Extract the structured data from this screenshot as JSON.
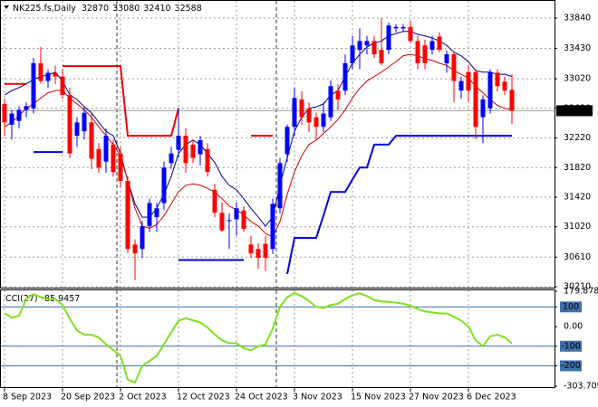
{
  "chart_data": [
    {
      "type": "candlestick",
      "title": "NK225.fs,Daily",
      "categories": [
        "8 Sep 2023",
        null,
        null,
        null,
        null,
        null,
        null,
        null,
        "20 Sep 2023",
        null,
        null,
        null,
        null,
        null,
        null,
        null,
        "2 Oct 2023",
        null,
        null,
        null,
        null,
        null,
        null,
        null,
        "12 Oct 2023",
        null,
        null,
        null,
        null,
        null,
        null,
        null,
        "24 Oct 2023",
        null,
        null,
        null,
        null,
        null,
        null,
        null,
        "3 Nov 2023",
        null,
        null,
        null,
        null,
        null,
        null,
        null,
        "15 Nov 2023",
        null,
        null,
        null,
        null,
        null,
        null,
        null,
        "27 Nov 2023",
        null,
        null,
        null,
        null,
        null,
        null,
        null,
        "6 Dec 2023",
        null,
        null,
        null,
        null,
        null,
        null
      ],
      "open": [
        32680,
        32400,
        32450,
        32600,
        32620,
        33230,
        32990,
        33100,
        33050,
        32800,
        32250,
        32310,
        32430,
        32070,
        31900,
        32130,
        32010,
        31640,
        30780,
        30720,
        31030,
        31150,
        31340,
        31880,
        32060,
        32250,
        32130,
        32000,
        32070,
        31520,
        31210,
        31100,
        31120,
        31240,
        30780,
        30720,
        30790,
        30720,
        31270,
        32000,
        32370,
        32740,
        32620,
        32500,
        32370,
        32500,
        32860,
        32860,
        33230,
        33410,
        33470,
        33530,
        33410,
        33410,
        33700,
        33700,
        33720,
        33530,
        33470,
        33410,
        33590,
        33230,
        33350,
        32860,
        33110,
        33110,
        32500,
        32620,
        33100,
        32980,
        32870
      ],
      "high": [
        32750,
        32600,
        32650,
        32700,
        33300,
        33450,
        33150,
        33200,
        33150,
        32900,
        32500,
        32650,
        32550,
        32150,
        32350,
        32200,
        32100,
        31700,
        30850,
        31100,
        31400,
        31350,
        31900,
        32100,
        32620,
        32350,
        32200,
        32250,
        32150,
        31600,
        31350,
        31200,
        31350,
        31300,
        30900,
        30800,
        30900,
        31400,
        31950,
        32400,
        32900,
        32850,
        32700,
        32560,
        32700,
        33000,
        32950,
        33350,
        33600,
        33700,
        33600,
        33600,
        33840,
        33780,
        33760,
        33760,
        33800,
        33600,
        33550,
        33600,
        33650,
        33400,
        33380,
        33050,
        33200,
        33150,
        32800,
        33150,
        33150,
        33050,
        33080
      ],
      "low": [
        32250,
        32200,
        32350,
        32500,
        32550,
        32950,
        32900,
        32950,
        32750,
        31950,
        32100,
        32200,
        31800,
        31750,
        31750,
        31700,
        31550,
        30660,
        30300,
        30600,
        30950,
        30950,
        31250,
        31800,
        31950,
        31750,
        31880,
        31850,
        31700,
        31150,
        30950,
        30720,
        30900,
        30950,
        30600,
        30450,
        30420,
        30650,
        31200,
        31900,
        32250,
        32400,
        32300,
        32200,
        32300,
        32450,
        32600,
        32800,
        33150,
        33150,
        33350,
        33300,
        33200,
        33350,
        33650,
        33650,
        33500,
        33150,
        33150,
        33350,
        33380,
        33100,
        32700,
        32750,
        32700,
        32200,
        32150,
        32550,
        32850,
        32800,
        32410
      ],
      "close": [
        32430,
        32550,
        32600,
        32650,
        33230,
        32990,
        33100,
        33050,
        32800,
        32010,
        32430,
        32560,
        31940,
        31820,
        32250,
        31760,
        31640,
        30720,
        30660,
        31030,
        31340,
        31270,
        31820,
        32010,
        32250,
        31880,
        31950,
        32190,
        31760,
        31210,
        30970,
        31110,
        31270,
        30990,
        30660,
        30600,
        30600,
        31330,
        31880,
        32370,
        32760,
        32500,
        32430,
        32370,
        32550,
        32920,
        32740,
        33230,
        33470,
        33530,
        33530,
        33350,
        33230,
        33740,
        33720,
        33720,
        33530,
        33230,
        33230,
        33530,
        33410,
        33350,
        32990,
        32990,
        32860,
        32370,
        32740,
        33110,
        32920,
        32860,
        32588
      ],
      "up_color": "#0000ff",
      "down_color": "#ff0000",
      "lines": [
        {
          "color": "#000080",
          "width": 1,
          "values": [
            32800,
            32860,
            32900,
            32950,
            33010,
            33050,
            33070,
            33110,
            32990,
            32800,
            32740,
            32640,
            32560,
            32430,
            32310,
            32250,
            32010,
            31640,
            31330,
            31150,
            31150,
            31270,
            31460,
            31700,
            32010,
            32130,
            32190,
            32130,
            32010,
            31890,
            31700,
            31580,
            31520,
            31400,
            31270,
            31150,
            31030,
            31150,
            31580,
            31950,
            32310,
            32500,
            32620,
            32640,
            32680,
            32800,
            32860,
            33050,
            33230,
            33350,
            33450,
            33500,
            33530,
            33600,
            33630,
            33660,
            33660,
            33620,
            33600,
            33570,
            33530,
            33470,
            33380,
            33330,
            33250,
            33130,
            33110,
            33110,
            33080,
            33080,
            33050
          ]
        },
        {
          "color": "#cc0000",
          "width": 1,
          "values": [
            32370,
            32430,
            32520,
            32620,
            32680,
            32760,
            32830,
            32860,
            32860,
            32760,
            32680,
            32600,
            32500,
            32370,
            32250,
            32130,
            31980,
            31640,
            31270,
            31030,
            31000,
            31050,
            31170,
            31330,
            31490,
            31580,
            31600,
            31580,
            31540,
            31490,
            31400,
            31300,
            31250,
            31180,
            31090,
            31030,
            30930,
            30880,
            31090,
            31460,
            31760,
            31980,
            32130,
            32190,
            32280,
            32370,
            32470,
            32600,
            32760,
            32890,
            32990,
            33050,
            33110,
            33180,
            33250,
            33330,
            33350,
            33330,
            33290,
            33270,
            33230,
            33200,
            33130,
            33080,
            33030,
            32920,
            32830,
            32740,
            32660,
            32620,
            32600
          ]
        },
        {
          "color": "#ee0000",
          "width": 2,
          "values": [
            32950,
            32950,
            32950,
            32950,
            null,
            null,
            null,
            null,
            33190,
            33190,
            33190,
            33190,
            33190,
            33190,
            33190,
            33190,
            33190,
            32250,
            32250,
            32250,
            32250,
            32250,
            32250,
            32250,
            32620,
            null,
            null,
            null,
            null,
            null,
            null,
            null,
            null,
            null,
            32250,
            32250,
            32250,
            32250,
            null,
            null,
            null,
            null,
            null,
            null,
            null,
            null,
            null,
            null,
            null,
            null,
            null,
            null,
            null,
            null,
            null,
            null,
            null,
            null,
            null,
            null,
            null,
            null,
            null,
            null,
            null,
            null,
            null,
            null,
            null,
            null,
            null
          ]
        },
        {
          "color": "#0000dd",
          "width": 2,
          "values": [
            null,
            null,
            null,
            null,
            32030,
            32030,
            32030,
            32030,
            32030,
            null,
            null,
            null,
            null,
            null,
            null,
            null,
            null,
            null,
            null,
            null,
            null,
            null,
            null,
            null,
            30570,
            30570,
            30570,
            30570,
            30570,
            30570,
            30570,
            30570,
            30570,
            30570,
            null,
            null,
            null,
            null,
            null,
            30380,
            30870,
            30870,
            30870,
            30870,
            31170,
            31490,
            31490,
            31490,
            31660,
            31820,
            31820,
            32130,
            32130,
            32130,
            32250,
            32250,
            32250,
            32250,
            32250,
            32250,
            32250,
            32250,
            32250,
            32250,
            32250,
            32250,
            32250,
            32250,
            32250,
            32250,
            32250
          ]
        }
      ],
      "ylim": [
        30198,
        34023
      ],
      "yticks": [
        33840,
        33430,
        33020,
        32620,
        32220,
        31820,
        31420,
        31020,
        30610,
        30210
      ],
      "grid": true,
      "separators": [
        16,
        38
      ]
    },
    {
      "type": "line",
      "title": "CCI(27)",
      "series": [
        {
          "color": "#7fe01f",
          "values": [
            67,
            45,
            55,
            140,
            165,
            150,
            140,
            140,
            110,
            40,
            -20,
            -42,
            -42,
            -55,
            -90,
            -120,
            -150,
            -270,
            -285,
            -200,
            -175,
            -150,
            -90,
            -30,
            30,
            42,
            32,
            20,
            -5,
            -40,
            -70,
            -85,
            -85,
            -110,
            -121,
            -100,
            -91,
            -10,
            100,
            150,
            170,
            155,
            130,
            100,
            95,
            110,
            116,
            140,
            160,
            170,
            155,
            135,
            128,
            126,
            122,
            116,
            106,
            90,
            77,
            72,
            67,
            67,
            50,
            30,
            0,
            -70,
            -100,
            -50,
            -42,
            -55,
            -85.9457
          ]
        }
      ],
      "ylim": [
        -303.709,
        179.8788
      ],
      "yticks": [
        179.8788,
        100,
        {
          "value": 0,
          "label": "0.00"
        },
        -100,
        -200,
        -303.709
      ],
      "levels": [
        100,
        -100,
        -200
      ],
      "level_color": "#3f6fa8"
    }
  ]
}
